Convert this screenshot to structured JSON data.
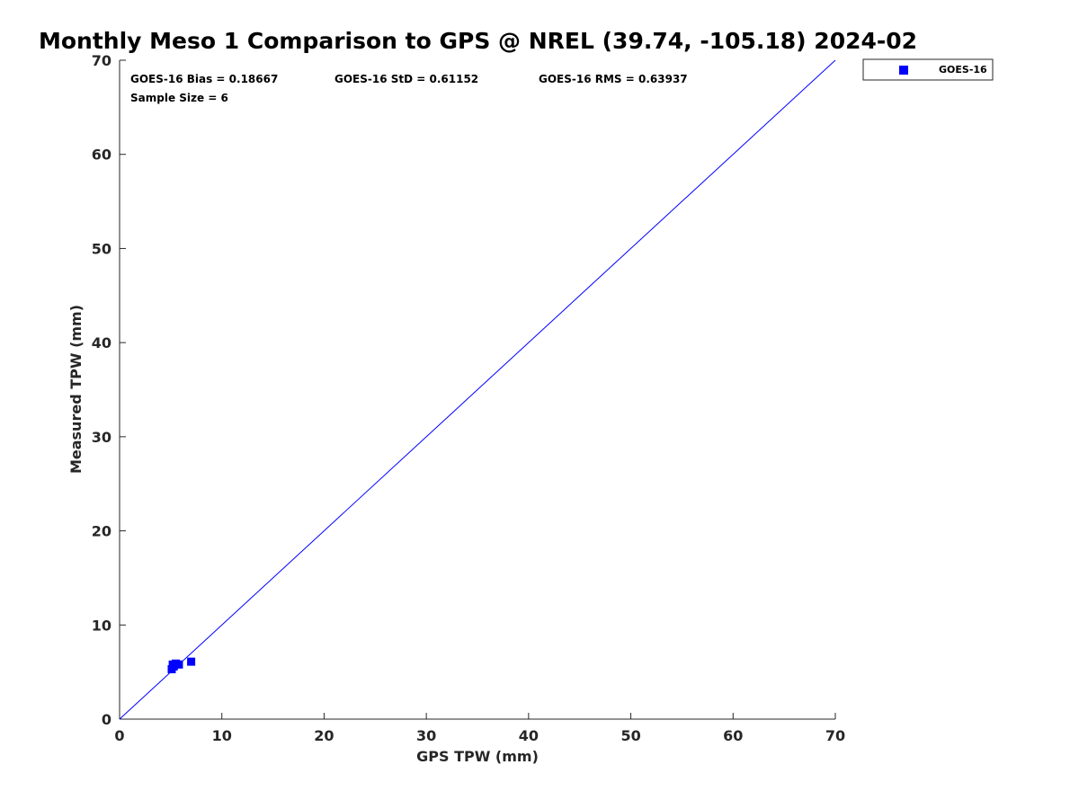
{
  "chart_data": {
    "type": "scatter",
    "title": "Monthly Meso 1 Comparison to GPS @ NREL (39.74, -105.18) 2024-02",
    "xlabel": "GPS TPW (mm)",
    "ylabel": "Measured TPW (mm)",
    "xlim": [
      0,
      70
    ],
    "ylim": [
      0,
      70
    ],
    "xticks": [
      "0",
      "10",
      "20",
      "30",
      "40",
      "50",
      "60",
      "70"
    ],
    "yticks": [
      "0",
      "10",
      "20",
      "30",
      "40",
      "50",
      "60",
      "70"
    ],
    "grid": false,
    "legend_position": "outside top-right",
    "reference_line": {
      "from": [
        0,
        0
      ],
      "to": [
        70,
        70
      ],
      "color": "#0000ff"
    },
    "stats": {
      "bias": "GOES-16 Bias = 0.18667",
      "std": "GOES-16 StD = 0.61152",
      "rms": "GOES-16 RMS = 0.63937",
      "sample_size": "Sample Size = 6"
    },
    "series": [
      {
        "name": "GOES-16",
        "color": "#0000ff",
        "marker": "square",
        "x": [
          5.1,
          5.2,
          5.3,
          5.5,
          5.8,
          7.0
        ],
        "y": [
          5.3,
          5.8,
          5.6,
          5.9,
          5.8,
          6.1
        ]
      }
    ]
  }
}
